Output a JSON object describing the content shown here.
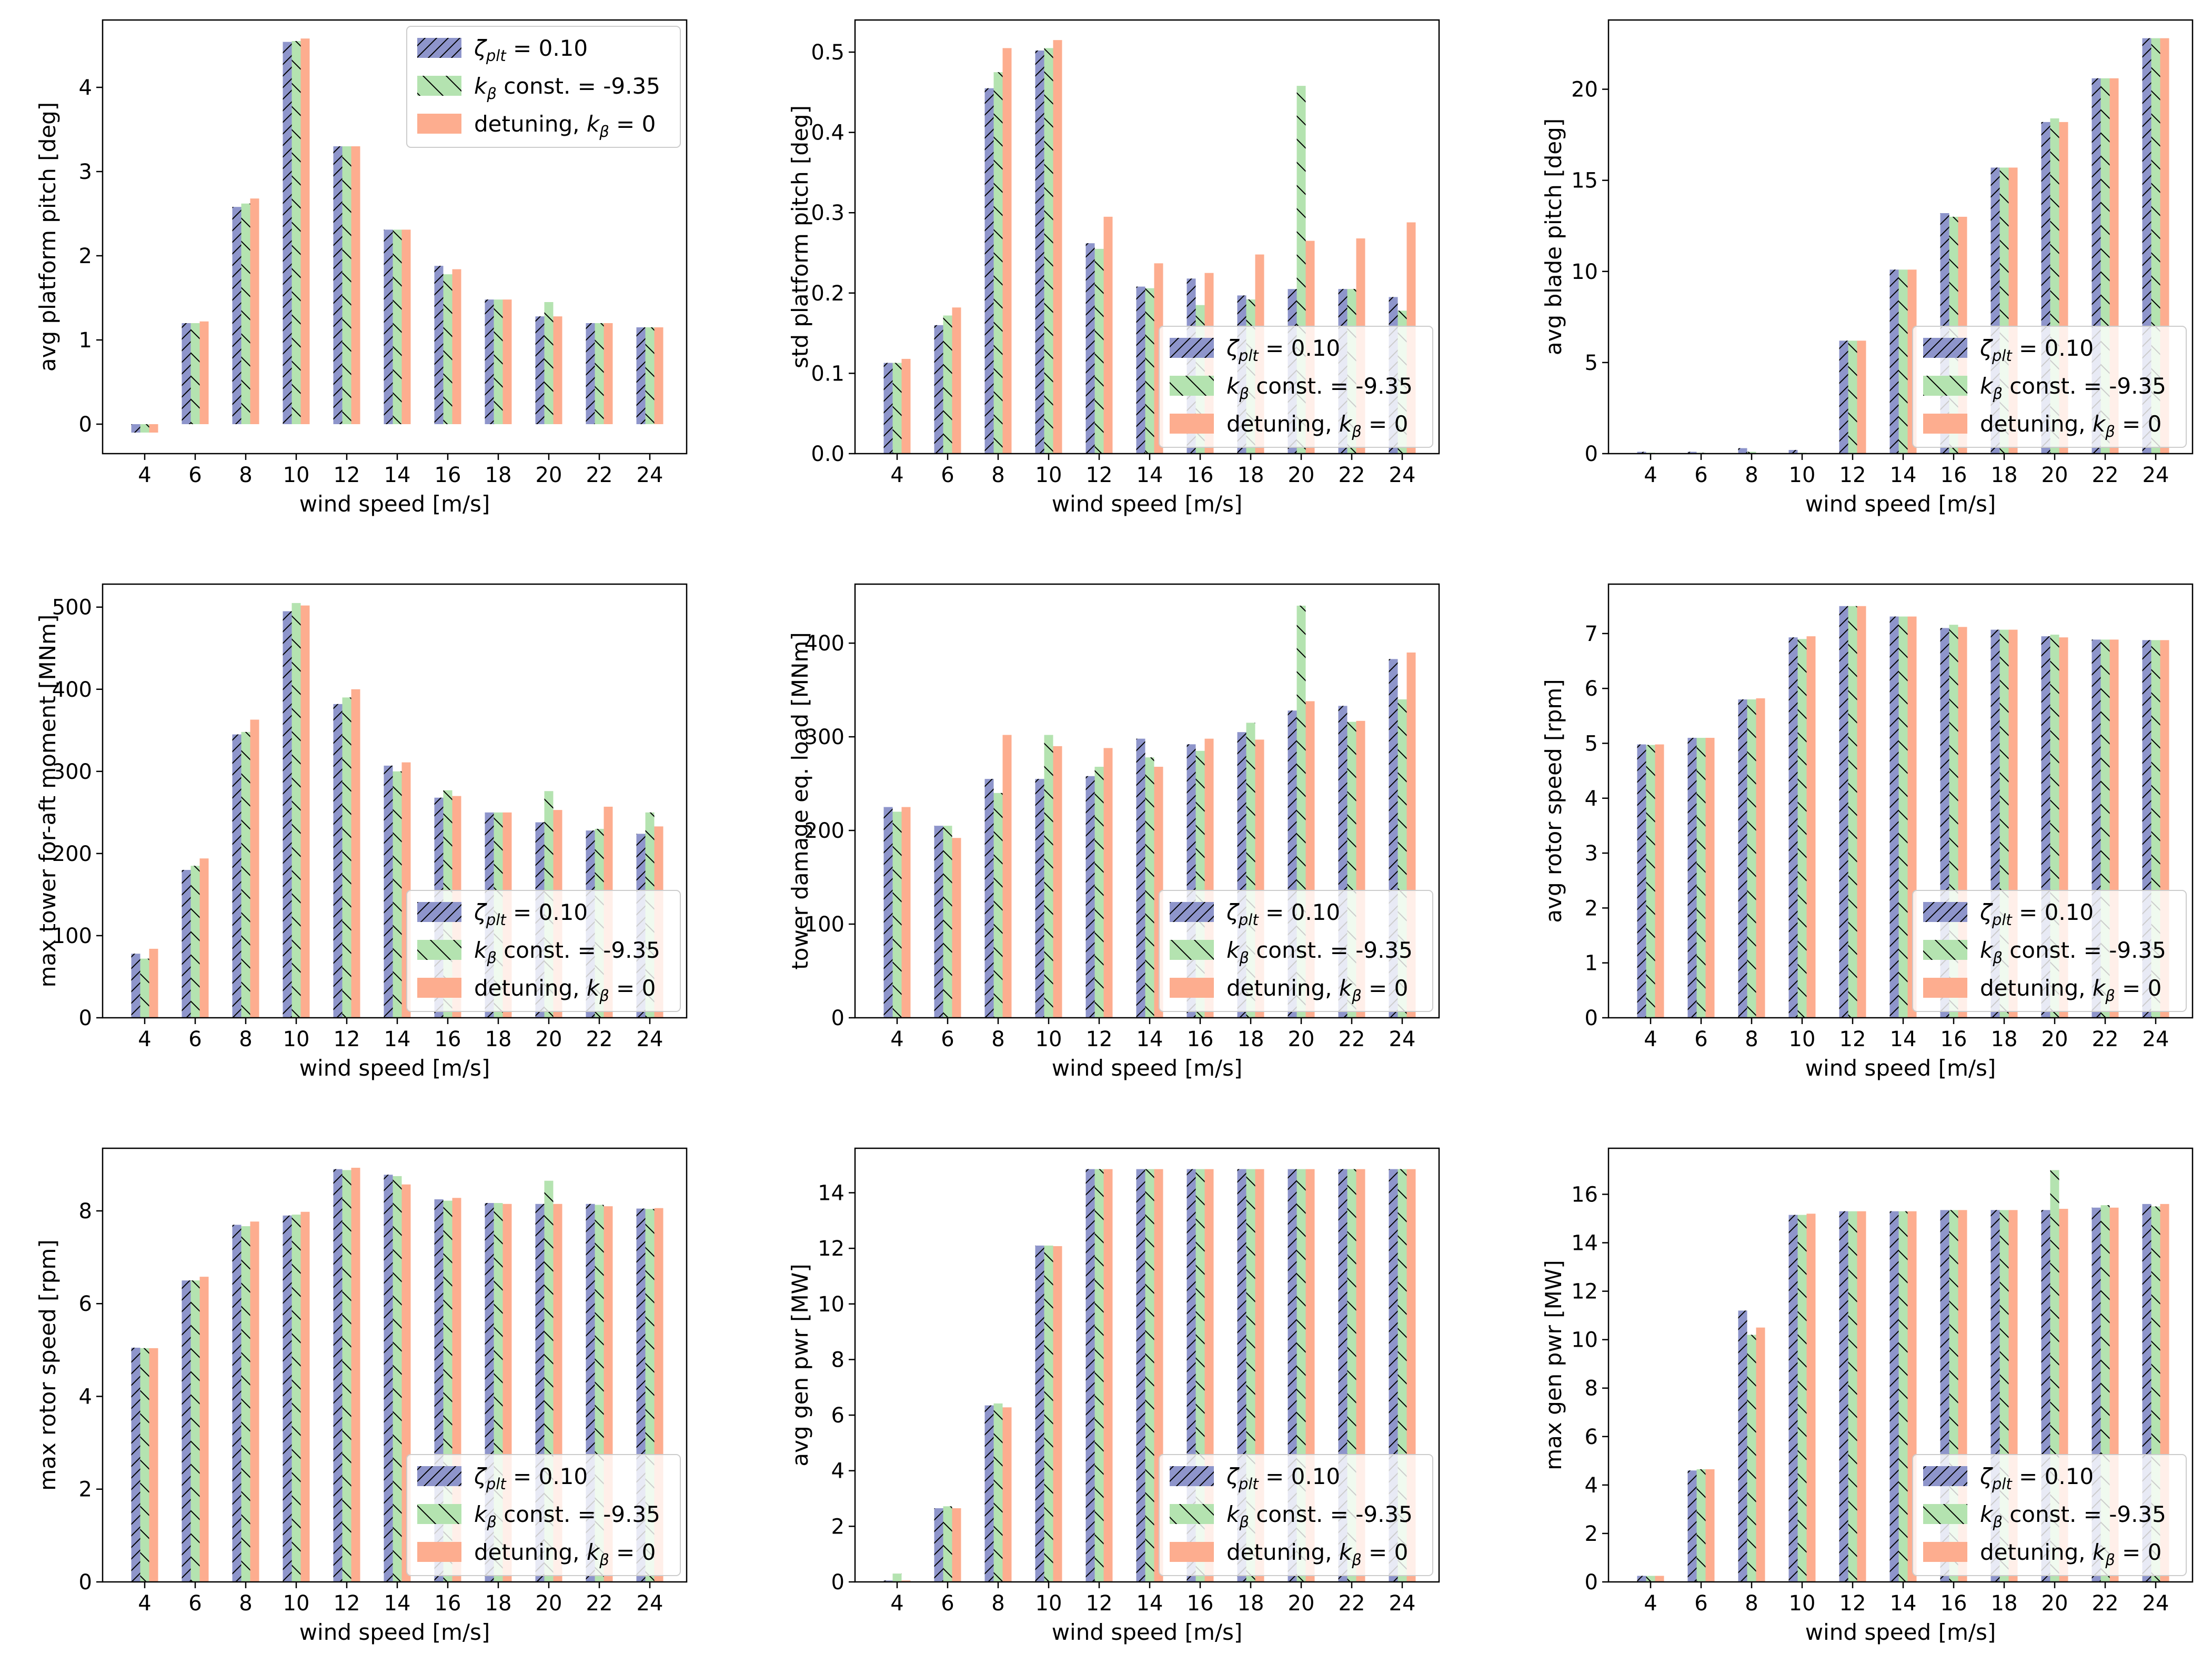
{
  "style": {
    "colors": {
      "zeta": "#8e95cb",
      "kbeta": "#b4e3b0",
      "detune": "#fdad8f",
      "hatch": "#000000",
      "frame": "#000000",
      "background": "#ffffff"
    }
  },
  "legend": {
    "entries": [
      {
        "key": "zeta",
        "label": "ζ_plt = 0.10",
        "sym": "ζ",
        "sub": "plt",
        "tail": " = 0.10"
      },
      {
        "key": "kbeta",
        "label": "k_β const. = -9.35",
        "sym": "k",
        "sub": "β",
        "tail": " const. = -9.35"
      },
      {
        "key": "detune",
        "label": "detuning, k_β = 0",
        "pre": "detuning, ",
        "sym": "k",
        "sub": "β",
        "tail": " = 0"
      }
    ]
  },
  "chart_data": [
    {
      "type": "bar",
      "title": "",
      "xlabel": "wind speed [m/s]",
      "ylabel": "avg platform pitch [deg]",
      "categories": [
        "4",
        "6",
        "8",
        "10",
        "12",
        "14",
        "16",
        "18",
        "20",
        "22",
        "24"
      ],
      "ylim": [
        -0.35,
        4.8
      ],
      "yticks": [
        0,
        1,
        2,
        3,
        4
      ],
      "tick_decimals": 0,
      "legend_loc": "upper-right",
      "series": [
        {
          "name": "ζ_plt = 0.10",
          "key": "zeta",
          "values": [
            -0.1,
            1.2,
            2.58,
            4.54,
            3.3,
            2.31,
            1.88,
            1.48,
            1.28,
            1.2,
            1.15
          ]
        },
        {
          "name": "k_β const. = -9.35",
          "key": "kbeta",
          "values": [
            -0.1,
            1.2,
            2.62,
            4.55,
            3.3,
            2.31,
            1.78,
            1.48,
            1.45,
            1.2,
            1.15
          ]
        },
        {
          "name": "detuning, k_β = 0",
          "key": "detune",
          "values": [
            -0.1,
            1.22,
            2.68,
            4.58,
            3.3,
            2.31,
            1.84,
            1.48,
            1.28,
            1.2,
            1.15
          ]
        }
      ]
    },
    {
      "type": "bar",
      "title": "",
      "xlabel": "wind speed [m/s]",
      "ylabel": "std platform pitch [deg]",
      "categories": [
        "4",
        "6",
        "8",
        "10",
        "12",
        "14",
        "16",
        "18",
        "20",
        "22",
        "24"
      ],
      "ylim": [
        0,
        0.54
      ],
      "yticks": [
        0.0,
        0.1,
        0.2,
        0.3,
        0.4,
        0.5
      ],
      "tick_decimals": 1,
      "legend_loc": "lower-right",
      "series": [
        {
          "name": "ζ_plt = 0.10",
          "key": "zeta",
          "values": [
            0.113,
            0.16,
            0.455,
            0.502,
            0.262,
            0.208,
            0.218,
            0.197,
            0.205,
            0.205,
            0.195
          ]
        },
        {
          "name": "k_β const. = -9.35",
          "key": "kbeta",
          "values": [
            0.113,
            0.172,
            0.475,
            0.505,
            0.255,
            0.206,
            0.185,
            0.192,
            0.458,
            0.205,
            0.178
          ]
        },
        {
          "name": "detuning, k_β = 0",
          "key": "detune",
          "values": [
            0.118,
            0.182,
            0.505,
            0.515,
            0.295,
            0.237,
            0.225,
            0.248,
            0.265,
            0.268,
            0.288
          ]
        }
      ]
    },
    {
      "type": "bar",
      "title": "",
      "xlabel": "wind speed [m/s]",
      "ylabel": "avg blade pitch  [deg]",
      "categories": [
        "4",
        "6",
        "8",
        "10",
        "12",
        "14",
        "16",
        "18",
        "20",
        "22",
        "24"
      ],
      "ylim": [
        0,
        23.8
      ],
      "yticks": [
        0,
        5,
        10,
        15,
        20
      ],
      "tick_decimals": 0,
      "legend_loc": "lower-right",
      "series": [
        {
          "name": "ζ_plt = 0.10",
          "key": "zeta",
          "values": [
            0.1,
            0.1,
            0.3,
            0.2,
            6.2,
            10.1,
            13.2,
            15.7,
            18.2,
            20.6,
            22.8
          ]
        },
        {
          "name": "k_β const. = -9.35",
          "key": "kbeta",
          "values": [
            0.05,
            0.05,
            0.1,
            0.05,
            6.2,
            10.1,
            13.0,
            15.7,
            18.4,
            20.6,
            22.8
          ]
        },
        {
          "name": "detuning, k_β = 0",
          "key": "detune",
          "values": [
            0.0,
            0.0,
            0.0,
            0.0,
            6.2,
            10.1,
            13.0,
            15.7,
            18.2,
            20.6,
            22.8
          ]
        }
      ]
    },
    {
      "type": "bar",
      "title": "",
      "xlabel": "wind speed [m/s]",
      "ylabel": "max tower for-aft moment  [MNm]",
      "categories": [
        "4",
        "6",
        "8",
        "10",
        "12",
        "14",
        "16",
        "18",
        "20",
        "22",
        "24"
      ],
      "ylim": [
        0,
        528
      ],
      "yticks": [
        0,
        100,
        200,
        300,
        400,
        500
      ],
      "tick_decimals": 0,
      "legend_loc": "lower-right",
      "series": [
        {
          "name": "ζ_plt = 0.10",
          "key": "zeta",
          "values": [
            78,
            180,
            345,
            495,
            382,
            307,
            268,
            250,
            238,
            228,
            224
          ]
        },
        {
          "name": "k_β const. = -9.35",
          "key": "kbeta",
          "values": [
            72,
            185,
            348,
            505,
            390,
            300,
            277,
            250,
            276,
            230,
            250
          ]
        },
        {
          "name": "detuning, k_β = 0",
          "key": "detune",
          "values": [
            84,
            194,
            363,
            502,
            400,
            311,
            270,
            250,
            253,
            257,
            233
          ]
        }
      ]
    },
    {
      "type": "bar",
      "title": "",
      "xlabel": "wind speed [m/s]",
      "ylabel": "tower damage eq. load [MNm]",
      "categories": [
        "4",
        "6",
        "8",
        "10",
        "12",
        "14",
        "16",
        "18",
        "20",
        "22",
        "24"
      ],
      "ylim": [
        0,
        463
      ],
      "yticks": [
        0,
        100,
        200,
        300,
        400
      ],
      "tick_decimals": 0,
      "legend_loc": "lower-right",
      "series": [
        {
          "name": "ζ_plt = 0.10",
          "key": "zeta",
          "values": [
            225,
            205,
            255,
            255,
            258,
            298,
            292,
            305,
            328,
            333,
            383
          ]
        },
        {
          "name": "k_β const. = -9.35",
          "key": "kbeta",
          "values": [
            220,
            205,
            240,
            302,
            268,
            278,
            285,
            315,
            440,
            316,
            340
          ]
        },
        {
          "name": "detuning, k_β = 0",
          "key": "detune",
          "values": [
            225,
            192,
            302,
            290,
            288,
            268,
            298,
            297,
            338,
            317,
            390
          ]
        }
      ]
    },
    {
      "type": "bar",
      "title": "",
      "xlabel": "wind speed [m/s]",
      "ylabel": "avg rotor speed [rpm]",
      "categories": [
        "4",
        "6",
        "8",
        "10",
        "12",
        "14",
        "16",
        "18",
        "20",
        "22",
        "24"
      ],
      "ylim": [
        0,
        7.9
      ],
      "yticks": [
        0,
        1,
        2,
        3,
        4,
        5,
        6,
        7
      ],
      "tick_decimals": 0,
      "legend_loc": "lower-right",
      "series": [
        {
          "name": "ζ_plt = 0.10",
          "key": "zeta",
          "values": [
            4.98,
            5.1,
            5.8,
            6.93,
            7.5,
            7.31,
            7.1,
            7.07,
            6.95,
            6.89,
            6.88
          ]
        },
        {
          "name": "k_β const. = -9.35",
          "key": "kbeta",
          "values": [
            4.97,
            5.1,
            5.8,
            6.9,
            7.5,
            7.31,
            7.16,
            7.07,
            6.98,
            6.89,
            6.88
          ]
        },
        {
          "name": "detuning, k_β = 0",
          "key": "detune",
          "values": [
            4.98,
            5.1,
            5.82,
            6.95,
            7.5,
            7.31,
            7.12,
            7.07,
            6.93,
            6.89,
            6.88
          ]
        }
      ]
    },
    {
      "type": "bar",
      "title": "",
      "xlabel": "wind speed [m/s]",
      "ylabel": "max rotor speed [rpm]",
      "categories": [
        "4",
        "6",
        "8",
        "10",
        "12",
        "14",
        "16",
        "18",
        "20",
        "22",
        "24"
      ],
      "ylim": [
        0,
        9.35
      ],
      "yticks": [
        0,
        2,
        4,
        6,
        8
      ],
      "tick_decimals": 0,
      "legend_loc": "lower-right",
      "series": [
        {
          "name": "ζ_plt = 0.10",
          "key": "zeta",
          "values": [
            5.05,
            6.5,
            7.7,
            7.9,
            8.9,
            8.78,
            8.25,
            8.17,
            8.15,
            8.15,
            8.05
          ]
        },
        {
          "name": "k_β const. = -9.35",
          "key": "kbeta",
          "values": [
            5.04,
            6.5,
            7.67,
            7.92,
            8.88,
            8.75,
            8.22,
            8.17,
            8.65,
            8.13,
            8.04
          ]
        },
        {
          "name": "detuning, k_β = 0",
          "key": "detune",
          "values": [
            5.04,
            6.58,
            7.77,
            7.98,
            8.93,
            8.57,
            8.28,
            8.15,
            8.15,
            8.1,
            8.06
          ]
        }
      ]
    },
    {
      "type": "bar",
      "title": "",
      "xlabel": "wind speed [m/s]",
      "ylabel": "avg gen pwr [MW]",
      "categories": [
        "4",
        "6",
        "8",
        "10",
        "12",
        "14",
        "16",
        "18",
        "20",
        "22",
        "24"
      ],
      "ylim": [
        0,
        15.6
      ],
      "yticks": [
        0,
        2,
        4,
        6,
        8,
        10,
        12,
        14
      ],
      "tick_decimals": 0,
      "legend_loc": "lower-right",
      "series": [
        {
          "name": "ζ_plt = 0.10",
          "key": "zeta",
          "values": [
            0.05,
            2.65,
            6.35,
            12.1,
            14.85,
            14.85,
            14.85,
            14.85,
            14.85,
            14.85,
            14.85
          ]
        },
        {
          "name": "k_β const. = -9.35",
          "key": "kbeta",
          "values": [
            0.3,
            2.72,
            6.42,
            12.1,
            14.85,
            14.85,
            14.85,
            14.85,
            14.85,
            14.85,
            14.85
          ]
        },
        {
          "name": "detuning, k_β = 0",
          "key": "detune",
          "values": [
            0.05,
            2.65,
            6.28,
            12.08,
            14.85,
            14.85,
            14.85,
            14.85,
            14.85,
            14.85,
            14.85
          ]
        }
      ]
    },
    {
      "type": "bar",
      "title": "",
      "xlabel": "wind speed [m/s]",
      "ylabel": "max gen pwr [MW]",
      "categories": [
        "4",
        "6",
        "8",
        "10",
        "12",
        "14",
        "16",
        "18",
        "20",
        "22",
        "24"
      ],
      "ylim": [
        0,
        17.9
      ],
      "yticks": [
        0,
        2,
        4,
        6,
        8,
        10,
        12,
        14,
        16
      ],
      "tick_decimals": 0,
      "legend_loc": "lower-right",
      "series": [
        {
          "name": "ζ_plt = 0.10",
          "key": "zeta",
          "values": [
            0.25,
            4.6,
            11.2,
            15.15,
            15.3,
            15.3,
            15.35,
            15.35,
            15.35,
            15.45,
            15.6
          ]
        },
        {
          "name": "k_β const. = -9.35",
          "key": "kbeta",
          "values": [
            0.25,
            4.65,
            10.2,
            15.15,
            15.3,
            15.3,
            15.35,
            15.35,
            17.0,
            15.55,
            15.5
          ]
        },
        {
          "name": "detuning, k_β = 0",
          "key": "detune",
          "values": [
            0.25,
            4.65,
            10.5,
            15.2,
            15.3,
            15.3,
            15.35,
            15.35,
            15.4,
            15.45,
            15.6
          ]
        }
      ]
    }
  ]
}
